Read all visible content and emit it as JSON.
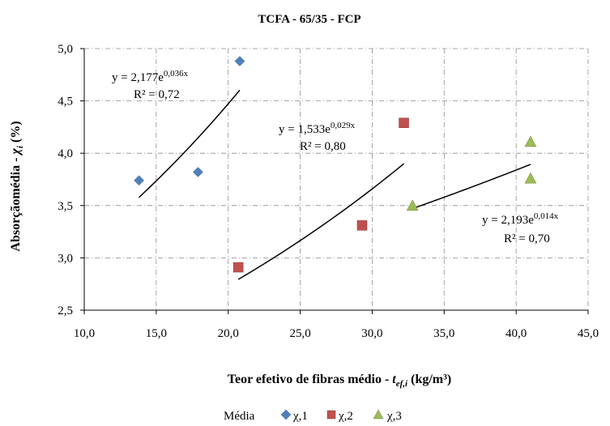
{
  "chart_data": {
    "type": "scatter",
    "title": "TCFA - 65/35 - FCP",
    "xlabel_main": "Teor efetivo de fibras  médio - ",
    "xlabel_sym": "t",
    "xlabel_sub": "ef,i",
    "xlabel_unit": " (kg/m³)",
    "ylabel_main": "Absorçãomédia - ",
    "ylabel_sym": "χ",
    "ylabel_sub": "i",
    "ylabel_unit": " (%)",
    "xlim": [
      10,
      45
    ],
    "ylim": [
      2.5,
      5.0
    ],
    "xticks": [
      10,
      15,
      20,
      25,
      30,
      35,
      40,
      45
    ],
    "yticks": [
      2.5,
      3.0,
      3.5,
      4.0,
      4.5,
      5.0
    ],
    "xtick_labels": [
      "10,0",
      "15,0",
      "20,0",
      "25,0",
      "30,0",
      "35,0",
      "40,0",
      "45,0"
    ],
    "ytick_labels": [
      "2,5",
      "3,0",
      "3,5",
      "4,0",
      "4,5",
      "5,0"
    ],
    "grid": true,
    "legend_position": "bottom",
    "legend_title": "Média",
    "series": [
      {
        "name": "χ,1",
        "marker": "diamond",
        "color": "#4F81BD",
        "x": [
          13.8,
          17.9,
          20.8
        ],
        "y": [
          3.74,
          3.82,
          4.88
        ],
        "trend": {
          "a": 2.177,
          "b": 0.036,
          "x_range": [
            13.8,
            20.8
          ]
        },
        "eq_prefix": "y = 2,177e",
        "eq_exp": "0,036x",
        "r2": "R² = 0,72"
      },
      {
        "name": "χ,2",
        "marker": "square",
        "color": "#C0504D",
        "x": [
          20.7,
          29.3,
          32.2
        ],
        "y": [
          2.91,
          3.31,
          4.29
        ],
        "trend": {
          "a": 1.533,
          "b": 0.029,
          "x_range": [
            20.7,
            32.2
          ]
        },
        "eq_prefix": "y = 1,533e",
        "eq_exp": "0,029x",
        "r2": "R² = 0,80"
      },
      {
        "name": "χ,3",
        "marker": "triangle",
        "color": "#9BBB59",
        "x": [
          32.8,
          41.0,
          41.0
        ],
        "y": [
          3.5,
          4.11,
          3.76
        ],
        "trend": {
          "a": 2.193,
          "b": 0.014,
          "x_range": [
            32.8,
            41.0
          ]
        },
        "eq_prefix": "y = 2,193e",
        "eq_exp": "0,014x",
        "r2": "R² = 0,70"
      }
    ]
  }
}
